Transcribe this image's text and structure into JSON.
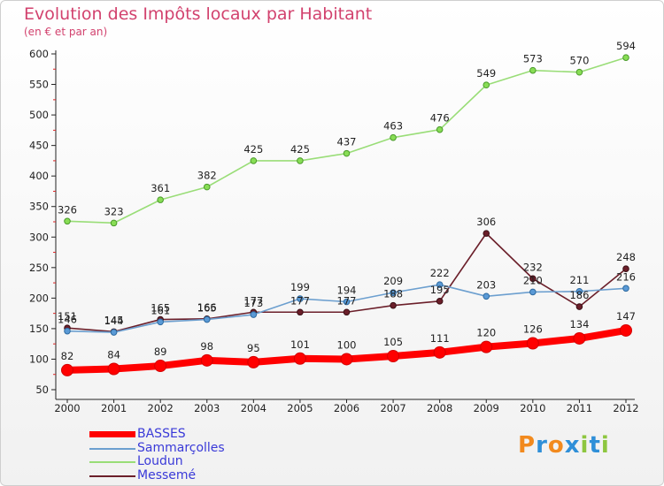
{
  "header": {
    "title": "Evolution des Impôts locaux par Habitant",
    "subtitle": "(en € et par an)"
  },
  "chart_data": {
    "type": "line",
    "title": "Evolution des Impôts locaux par Habitant",
    "subtitle": "(en € et par an)",
    "xlabel": "",
    "ylabel": "",
    "x": [
      "2000",
      "2001",
      "2002",
      "2003",
      "2004",
      "2005",
      "2006",
      "2007",
      "2008",
      "2009",
      "2010",
      "2011",
      "2012"
    ],
    "ylim": [
      50,
      600
    ],
    "yticks": [
      50,
      100,
      150,
      200,
      250,
      300,
      350,
      400,
      450,
      500,
      550,
      600
    ],
    "grid": false,
    "legend_position": "bottom-left",
    "series": [
      {
        "name": "BASSES",
        "color": "#ff0000",
        "values": [
          82,
          84,
          89,
          98,
          95,
          101,
          100,
          105,
          111,
          120,
          126,
          134,
          147
        ]
      },
      {
        "name": "Sammarçolles",
        "color": "#6c9fcf",
        "values": [
          146,
          144,
          161,
          165,
          173,
          199,
          194,
          209,
          222,
          203,
          210,
          211,
          216
        ]
      },
      {
        "name": "Loudun",
        "color": "#99dd77",
        "values": [
          326,
          323,
          361,
          382,
          425,
          425,
          437,
          463,
          476,
          549,
          573,
          570,
          594
        ]
      },
      {
        "name": "Messemé",
        "color": "#6b1f2a",
        "values": [
          151,
          145,
          165,
          166,
          177,
          177,
          177,
          188,
          195,
          306,
          232,
          186,
          248
        ]
      }
    ]
  },
  "logo": {
    "letters": [
      "P",
      "r",
      "o",
      "x",
      "i",
      "t",
      "i"
    ],
    "colors": [
      "#f28a1e",
      "#2f8fd8",
      "#f28a1e",
      "#2f8fd8",
      "#8dc63f",
      "#2f8fd8",
      "#8dc63f"
    ]
  }
}
